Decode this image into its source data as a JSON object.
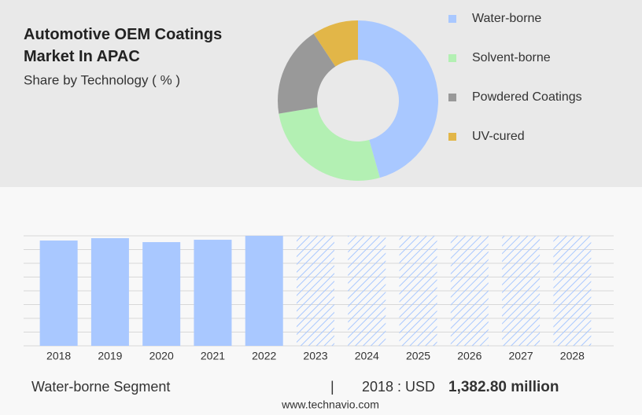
{
  "chart_data": [
    {
      "type": "donut",
      "title": "Automotive OEM Coatings Market In APAC",
      "subtitle": "Share by Technology ( % )",
      "categories": [
        "Water-borne",
        "Solvent-borne",
        "Powdered Coatings",
        "UV-cured"
      ],
      "values": [
        45.6,
        26.8,
        18.3,
        9.3
      ],
      "colors": [
        "#a9c8ff",
        "#b3f0b3",
        "#999999",
        "#e2b648"
      ]
    },
    {
      "type": "bar",
      "categories": [
        "2018",
        "2019",
        "2020",
        "2021",
        "2022",
        "2023",
        "2024",
        "2025",
        "2026",
        "2027",
        "2028"
      ],
      "values": [
        1382.8,
        1413.8,
        1362,
        1393,
        1445,
        null,
        null,
        null,
        null,
        null,
        null
      ],
      "color": "#a9c8ff",
      "ylim": [
        0,
        1445
      ],
      "grid": true
    }
  ],
  "footer": {
    "segment": "Water-borne Segment",
    "separator": "|",
    "year_label": "2018 : USD",
    "value": "1,382.80 million",
    "source": "www.technavio.com"
  }
}
